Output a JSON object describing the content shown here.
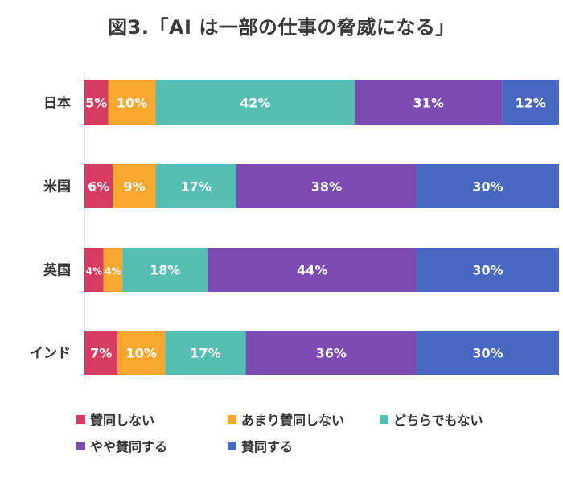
{
  "title": "図3.「AI は一部の仕事の脅威になる」",
  "chart_data": {
    "type": "bar",
    "orientation": "horizontal",
    "stacked": true,
    "categories": [
      "日本",
      "米国",
      "英国",
      "インド"
    ],
    "series": [
      {
        "name": "賛同しない",
        "color": "#d63b62",
        "values": [
          5,
          6,
          4,
          7
        ]
      },
      {
        "name": "あまり賛同しない",
        "color": "#f7a62e",
        "values": [
          10,
          9,
          4,
          10
        ]
      },
      {
        "name": "どちらでもない",
        "color": "#56bdb5",
        "values": [
          42,
          17,
          18,
          17
        ]
      },
      {
        "name": "やや賛同する",
        "color": "#7c4ab3",
        "values": [
          31,
          38,
          44,
          36
        ]
      },
      {
        "name": "賛同する",
        "color": "#4668c0",
        "values": [
          12,
          30,
          30,
          30
        ]
      }
    ],
    "value_suffix": "%",
    "xlim": [
      0,
      100
    ],
    "grid": false,
    "legend_position": "bottom"
  }
}
